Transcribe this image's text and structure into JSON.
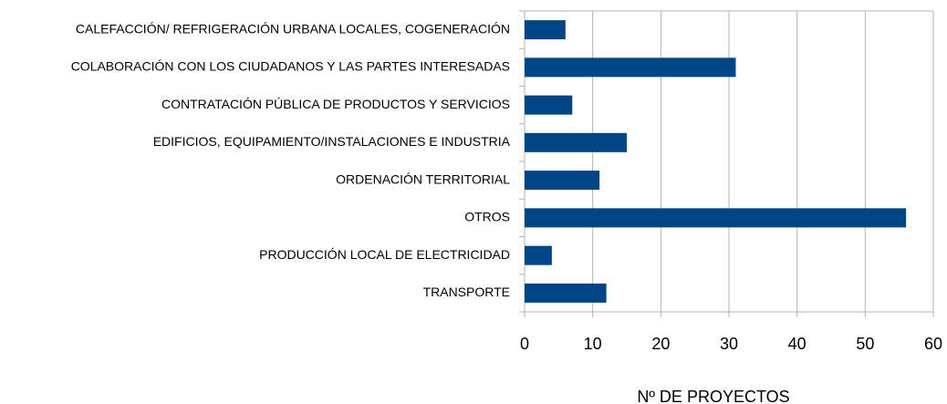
{
  "chart_data": {
    "type": "barh",
    "categories": [
      "CALEFACCIÓN/ REFRIGERACIÓN URBANA LOCALES, COGENERACIÓN",
      "COLABORACIÓN CON LOS CIUDADANOS Y LAS PARTES INTERESADAS",
      "CONTRATACIÓN PÚBLICA DE PRODUCTOS Y SERVICIOS",
      "EDIFICIOS, EQUIPAMIENTO/INSTALACIONES E INDUSTRIA",
      "ORDENACIÓN TERRITORIAL",
      "OTROS",
      "PRODUCCIÓN LOCAL DE ELECTRICIDAD",
      "TRANSPORTE"
    ],
    "values": [
      6,
      31,
      7,
      15,
      11,
      56,
      4,
      12
    ],
    "color": "#004586",
    "xlabel": "Nº DE PROYECTOS",
    "xlim": [
      0,
      60
    ],
    "xticks": [
      0,
      10,
      20,
      30,
      40,
      50,
      60
    ],
    "grid": true
  }
}
